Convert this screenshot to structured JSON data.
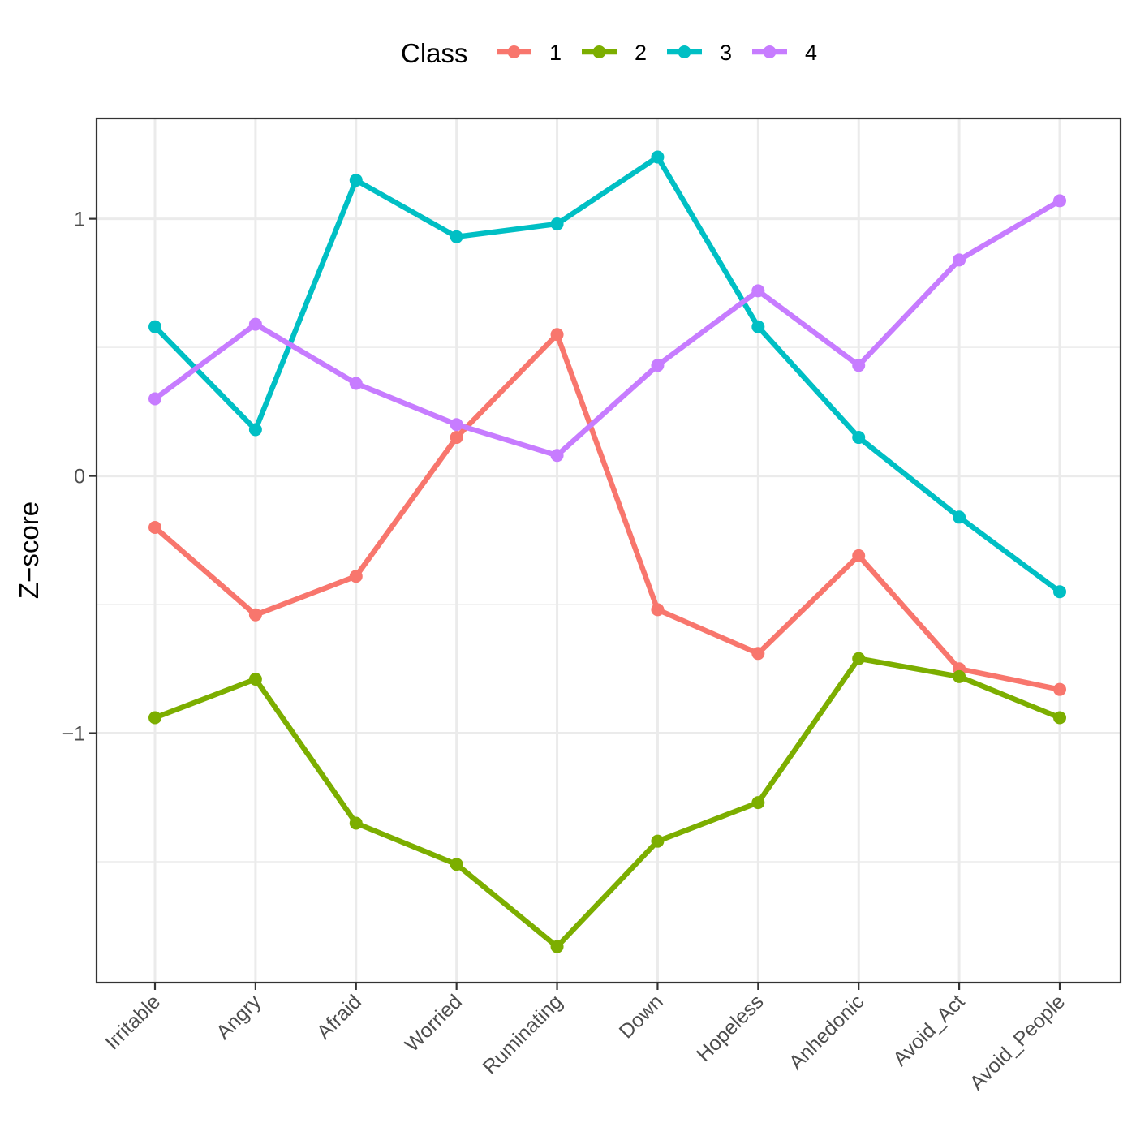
{
  "chart_data": {
    "type": "line",
    "title": "",
    "xlabel": "",
    "ylabel": "Z−score",
    "legend": {
      "title": "Class",
      "position": "top"
    },
    "categories": [
      "Irritable",
      "Angry",
      "Afraid",
      "Worried",
      "Ruminating",
      "Down",
      "Hopeless",
      "Anhedonic",
      "Avoid_Act",
      "Avoid_People"
    ],
    "ylim": [
      -1.97,
      1.39
    ],
    "yticks": [
      {
        "value": -1,
        "label": "−1"
      },
      {
        "value": 0,
        "label": "0"
      },
      {
        "value": 1,
        "label": "1"
      }
    ],
    "y_minor_gridlines": [
      -1.5,
      -0.5,
      0.5
    ],
    "grid": true,
    "series": [
      {
        "name": "1",
        "color": "#F8766D",
        "values": [
          -0.2,
          -0.54,
          -0.39,
          0.15,
          0.55,
          -0.52,
          -0.69,
          -0.31,
          -0.75,
          -0.83
        ]
      },
      {
        "name": "2",
        "color": "#7CAE00",
        "values": [
          -0.94,
          -0.79,
          -1.35,
          -1.51,
          -1.83,
          -1.42,
          -1.27,
          -0.71,
          -0.78,
          -0.94
        ]
      },
      {
        "name": "3",
        "color": "#00BFC4",
        "values": [
          0.58,
          0.18,
          1.15,
          0.93,
          0.98,
          1.24,
          0.58,
          0.15,
          -0.16,
          -0.45
        ]
      },
      {
        "name": "4",
        "color": "#C77CFF",
        "values": [
          0.3,
          0.59,
          0.36,
          0.2,
          0.08,
          0.43,
          0.72,
          0.43,
          0.84,
          1.07
        ]
      }
    ]
  }
}
